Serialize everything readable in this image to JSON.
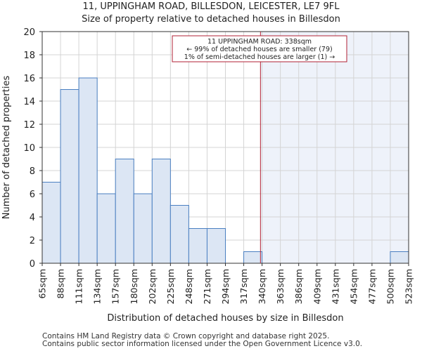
{
  "chart_data": {
    "type": "bar",
    "title": "11, UPPINGHAM ROAD, BILLESDON, LEICESTER, LE7 9FL",
    "subtitle": "Size of property relative to detached houses in Billesdon",
    "xlabel": "Distribution of detached houses by size in Billesdon",
    "ylabel": "Number of detached properties",
    "ylim": [
      0,
      20
    ],
    "yticks": [
      0,
      2,
      4,
      6,
      8,
      10,
      12,
      14,
      16,
      18,
      20
    ],
    "bin_edges": [
      65,
      88,
      111,
      134,
      157,
      180,
      202,
      225,
      248,
      271,
      294,
      317,
      340,
      363,
      386,
      409,
      431,
      454,
      477,
      500,
      523
    ],
    "tick_labels": [
      "65sqm",
      "88sqm",
      "111sqm",
      "134sqm",
      "157sqm",
      "180sqm",
      "202sqm",
      "225sqm",
      "248sqm",
      "271sqm",
      "294sqm",
      "317sqm",
      "340sqm",
      "363sqm",
      "386sqm",
      "409sqm",
      "431sqm",
      "454sqm",
      "477sqm",
      "500sqm",
      "523sqm"
    ],
    "values": [
      7,
      15,
      16,
      6,
      9,
      6,
      9,
      5,
      3,
      3,
      0,
      1,
      0,
      0,
      0,
      0,
      0,
      0,
      0,
      1
    ],
    "bar_color": "#dce6f4",
    "bar_edge_color": "#4a7fc1",
    "marker": {
      "x": 338,
      "color": "#b22234"
    },
    "highlight_region_color": "#eef2fa",
    "grid": true,
    "annotation": [
      "11 UPPINGHAM ROAD: 338sqm",
      "← 99% of detached houses are smaller (79)",
      "1% of semi-detached houses are larger (1) →"
    ]
  },
  "footer": {
    "line1": "Contains HM Land Registry data © Crown copyright and database right 2025.",
    "line2": "Contains public sector information licensed under the Open Government Licence v3.0."
  }
}
